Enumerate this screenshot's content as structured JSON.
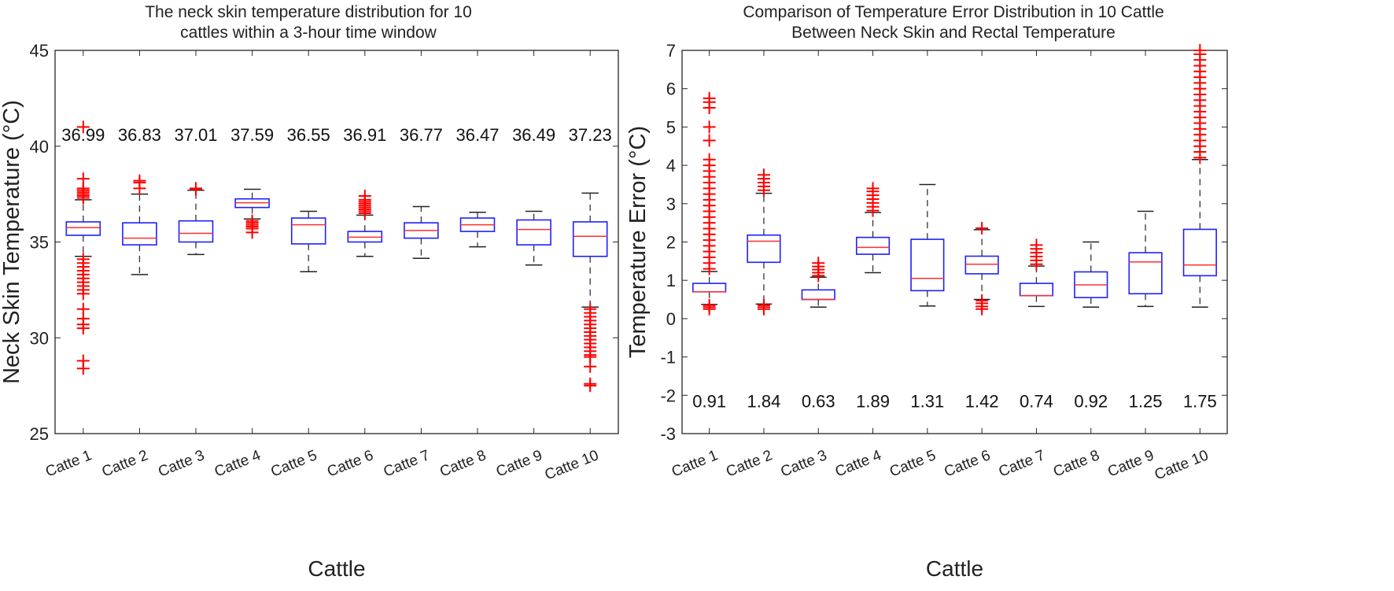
{
  "chart_data": [
    {
      "type": "box",
      "title": [
        "The neck skin temperature distribution for 10",
        "cattles within a 3-hour time window"
      ],
      "xlabel": "Cattle",
      "ylabel": "Neck Skin Temperature (°C)",
      "ylim": [
        25,
        45
      ],
      "yticks": [
        25,
        30,
        35,
        40,
        45
      ],
      "annotation_y": 40.6,
      "categories": [
        "Catte 1",
        "Catte 2",
        "Catte 3",
        "Catte 4",
        "Catte 5",
        "Catte 6",
        "Catte 7",
        "Catte 8",
        "Catte 9",
        "Catte 10"
      ],
      "annotations": [
        "36.99",
        "36.83",
        "37.01",
        "37.59",
        "36.55",
        "36.91",
        "36.77",
        "36.47",
        "36.49",
        "37.23"
      ],
      "boxes": [
        {
          "q1": 35.35,
          "median": 35.75,
          "q3": 36.05,
          "wlo": 34.25,
          "whi": 37.2,
          "outliers": [
            37.3,
            37.4,
            37.5,
            37.6,
            37.7,
            37.8,
            38.3,
            41.0,
            34.1,
            33.9,
            33.7,
            33.5,
            33.3,
            33.1,
            32.9,
            32.7,
            32.5,
            32.3,
            31.5,
            31.0,
            30.7,
            30.5,
            28.8,
            28.4
          ]
        },
        {
          "q1": 34.85,
          "median": 35.2,
          "q3": 36.0,
          "wlo": 33.3,
          "whi": 37.5,
          "outliers": [
            37.8,
            38.1,
            38.2
          ]
        },
        {
          "q1": 35.0,
          "median": 35.45,
          "q3": 36.1,
          "wlo": 34.35,
          "whi": 37.7,
          "outliers": [
            37.75,
            37.8
          ]
        },
        {
          "q1": 36.8,
          "median": 37.05,
          "q3": 37.25,
          "wlo": 36.2,
          "whi": 37.75,
          "outliers": [
            36.1,
            36.0,
            35.9,
            35.8,
            35.7,
            35.5
          ]
        },
        {
          "q1": 34.9,
          "median": 35.9,
          "q3": 36.25,
          "wlo": 33.45,
          "whi": 36.6,
          "outliers": []
        },
        {
          "q1": 35.0,
          "median": 35.25,
          "q3": 35.55,
          "wlo": 34.25,
          "whi": 36.4,
          "outliers": [
            36.5,
            36.6,
            36.7,
            36.8,
            36.9,
            37.0,
            37.1,
            37.2,
            37.4
          ]
        },
        {
          "q1": 35.2,
          "median": 35.6,
          "q3": 36.0,
          "wlo": 34.15,
          "whi": 36.85,
          "outliers": []
        },
        {
          "q1": 35.55,
          "median": 35.9,
          "q3": 36.25,
          "wlo": 34.75,
          "whi": 36.55,
          "outliers": []
        },
        {
          "q1": 34.85,
          "median": 35.65,
          "q3": 36.15,
          "wlo": 33.8,
          "whi": 36.6,
          "outliers": []
        },
        {
          "q1": 34.25,
          "median": 35.3,
          "q3": 36.05,
          "wlo": 31.6,
          "whi": 37.55,
          "outliers": [
            31.5,
            31.3,
            31.1,
            30.9,
            30.7,
            30.5,
            30.3,
            30.1,
            29.9,
            29.7,
            29.5,
            29.3,
            29.1,
            29.0,
            28.5,
            27.6,
            27.5
          ]
        }
      ]
    },
    {
      "type": "box",
      "title": [
        "Comparison of Temperature Error Distribution in 10 Cattle",
        "Between Neck Skin and Rectal Temperature"
      ],
      "xlabel": "Cattle",
      "ylabel": "Temperature Error (°C)",
      "ylim": [
        -3,
        7
      ],
      "yticks": [
        -3,
        -2,
        -1,
        0,
        1,
        2,
        3,
        4,
        5,
        6,
        7
      ],
      "annotation_y": -2.15,
      "categories": [
        "Catte 1",
        "Catte 2",
        "Catte 3",
        "Catte 4",
        "Catte 5",
        "Catte 6",
        "Catte 7",
        "Catte 8",
        "Catte 9",
        "Catte 10"
      ],
      "annotations": [
        "0.91",
        "1.84",
        "0.63",
        "1.89",
        "1.31",
        "1.42",
        "0.74",
        "0.92",
        "1.25",
        "1.75"
      ],
      "boxes": [
        {
          "q1": 0.7,
          "median": 0.7,
          "q3": 0.92,
          "wlo": 0.37,
          "whi": 1.23,
          "outliers": [
            0.25,
            0.3,
            0.35,
            1.3,
            1.45,
            1.6,
            1.75,
            1.9,
            2.05,
            2.2,
            2.35,
            2.5,
            2.65,
            2.8,
            2.95,
            3.1,
            3.25,
            3.4,
            3.55,
            3.7,
            3.85,
            4.0,
            4.15,
            4.65,
            5.0,
            5.5,
            5.65,
            5.75
          ]
        },
        {
          "q1": 1.47,
          "median": 2.02,
          "q3": 2.18,
          "wlo": 0.38,
          "whi": 3.27,
          "outliers": [
            0.25,
            0.3,
            0.35,
            3.35,
            3.45,
            3.55,
            3.65,
            3.75
          ]
        },
        {
          "q1": 0.5,
          "median": 0.5,
          "q3": 0.75,
          "wlo": 0.3,
          "whi": 1.08,
          "outliers": [
            1.12,
            1.2,
            1.28,
            1.36,
            1.45
          ]
        },
        {
          "q1": 1.68,
          "median": 1.86,
          "q3": 2.12,
          "wlo": 1.2,
          "whi": 2.77,
          "outliers": [
            2.82,
            2.92,
            3.02,
            3.12,
            3.22,
            3.32,
            3.4
          ]
        },
        {
          "q1": 0.73,
          "median": 1.05,
          "q3": 2.07,
          "wlo": 0.33,
          "whi": 3.5,
          "outliers": []
        },
        {
          "q1": 1.17,
          "median": 1.42,
          "q3": 1.63,
          "wlo": 0.5,
          "whi": 2.32,
          "outliers": [
            0.25,
            0.32,
            0.4,
            0.47,
            2.36
          ]
        },
        {
          "q1": 0.6,
          "median": 0.6,
          "q3": 0.92,
          "wlo": 0.32,
          "whi": 1.37,
          "outliers": [
            1.42,
            1.52,
            1.62,
            1.72,
            1.82,
            1.92
          ]
        },
        {
          "q1": 0.55,
          "median": 0.88,
          "q3": 1.22,
          "wlo": 0.3,
          "whi": 2.0,
          "outliers": []
        },
        {
          "q1": 0.65,
          "median": 1.48,
          "q3": 1.72,
          "wlo": 0.32,
          "whi": 2.8,
          "outliers": []
        },
        {
          "q1": 1.12,
          "median": 1.4,
          "q3": 2.33,
          "wlo": 0.3,
          "whi": 4.15,
          "outliers": [
            4.2,
            4.35,
            4.5,
            4.65,
            4.8,
            4.95,
            5.1,
            5.25,
            5.4,
            5.55,
            5.7,
            5.85,
            6.0,
            6.15,
            6.3,
            6.45,
            6.6,
            6.75,
            6.9,
            7.0
          ]
        }
      ]
    }
  ]
}
